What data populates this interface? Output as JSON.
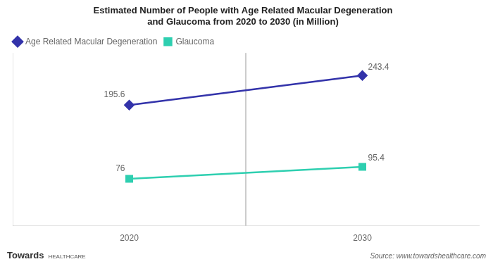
{
  "chart_data": {
    "type": "line",
    "title": "Estimated Number of People with Age Related Macular Degeneration\nand Glaucoma from 2020 to 2030 (in Million)",
    "x": [
      2020,
      2030
    ],
    "series": [
      {
        "name": "Age Related Macular Degeneration",
        "color": "#3333aa",
        "marker": "diamond",
        "values": [
          195.6,
          243.4
        ]
      },
      {
        "name": "Glaucoma",
        "color": "#2ecfb0",
        "marker": "square",
        "values": [
          76,
          95.4
        ]
      }
    ],
    "xlim": [
      2015,
      2035
    ],
    "xticks": [
      2020,
      2030
    ],
    "ylim": [
      0,
      280
    ],
    "yticks": [],
    "tick_labels": "x",
    "grid": false,
    "legend": "upper left",
    "data_labels": true,
    "vlines": [
      2025
    ],
    "logo_text": [
      "Towards",
      "HEALTHCARE"
    ],
    "source": "Source: www.towardshealthcare.com"
  }
}
